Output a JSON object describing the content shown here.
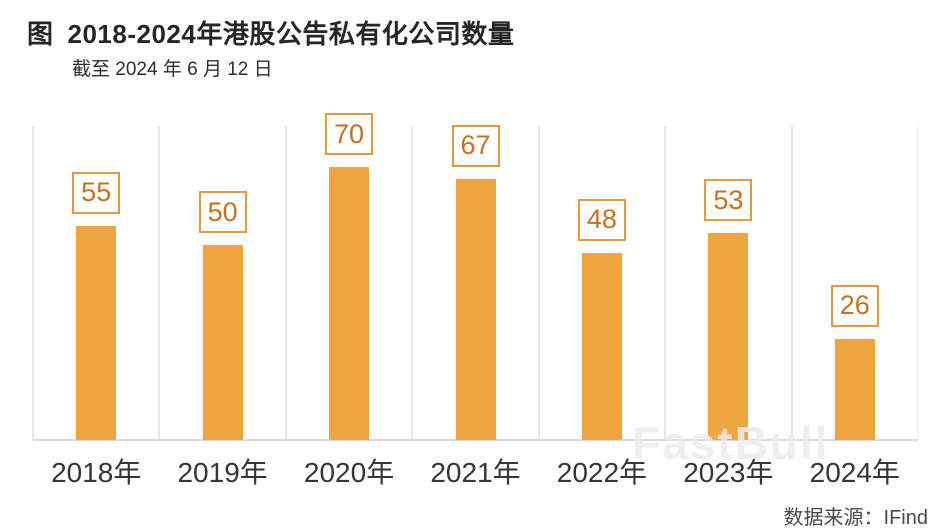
{
  "header": {
    "figure_label": "图",
    "title": "2018-2024年港股公告私有化公司数量",
    "subtitle": "截至 2024 年 6 月 12 日"
  },
  "footer": {
    "watermark": "FastBull",
    "source": "数据来源：IFind"
  },
  "chart_data": {
    "type": "bar",
    "title": "2018-2024年港股公告私有化公司数量",
    "subtitle": "截至 2024 年 6 月 12 日",
    "categories": [
      "2018年",
      "2019年",
      "2020年",
      "2021年",
      "2022年",
      "2023年",
      "2024年"
    ],
    "values": [
      55,
      50,
      70,
      67,
      48,
      53,
      26
    ],
    "xlabel": "",
    "ylabel": "",
    "ylim": [
      0,
      80
    ],
    "data_labels": true,
    "legend": "none",
    "grid": "vertical category separators, light gray",
    "bar_color": "#EFA540",
    "label_box_border_color": "#E59A3F",
    "label_text_color": "#C8701F",
    "source": "数据来源：IFind",
    "watermark": "FastBull"
  }
}
